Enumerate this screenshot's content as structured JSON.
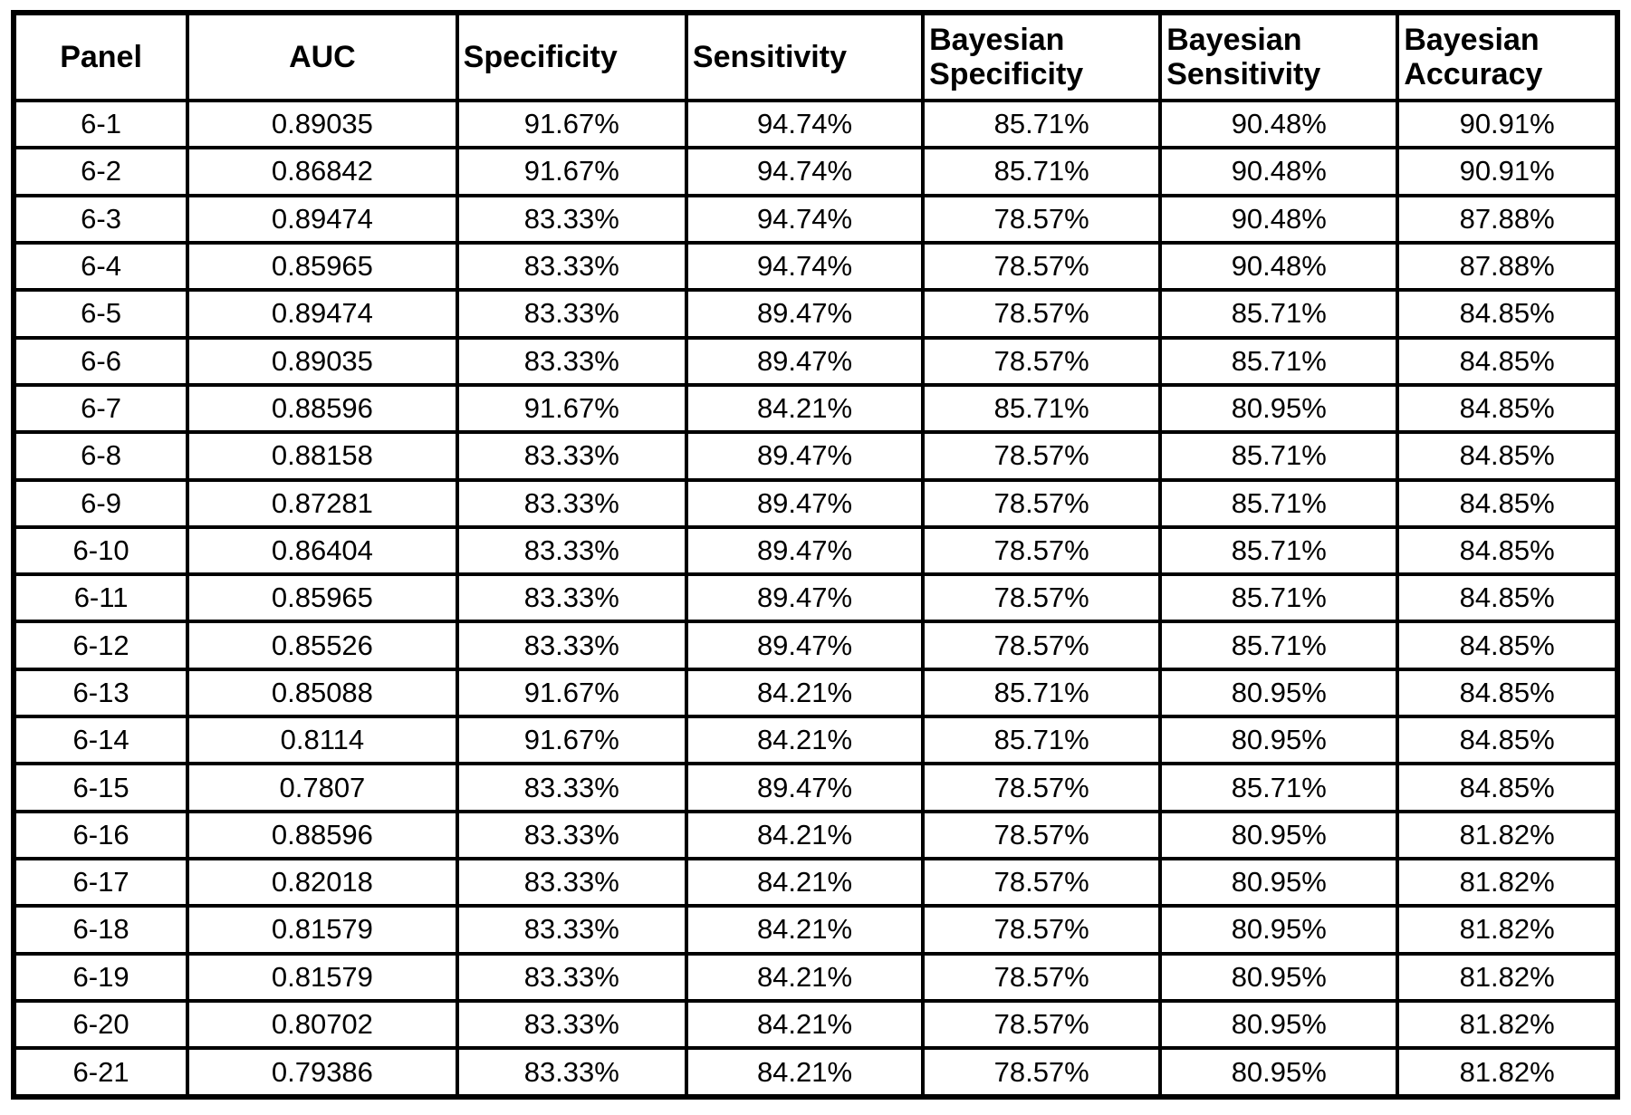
{
  "chart_data": {
    "type": "table",
    "title": "",
    "columns": [
      {
        "id": "panel",
        "label": "Panel",
        "align": "center"
      },
      {
        "id": "auc",
        "label": "AUC",
        "align": "center"
      },
      {
        "id": "specificity",
        "label": "Specificity",
        "align": "left"
      },
      {
        "id": "sensitivity",
        "label": "Sensitivity",
        "align": "left"
      },
      {
        "id": "bayesian-specificity",
        "label": "Bayesian Specificity",
        "align": "left",
        "lines": [
          "Bayesian",
          "Specificity"
        ]
      },
      {
        "id": "bayesian-sensitivity",
        "label": "Bayesian Sensitivity",
        "align": "left",
        "lines": [
          "Bayesian",
          "Sensitivity"
        ]
      },
      {
        "id": "bayesian-accuracy",
        "label": "Bayesian Accuracy",
        "align": "left",
        "lines": [
          "Bayesian",
          "Accuracy"
        ]
      }
    ],
    "rows": [
      [
        "6-1",
        "0.89035",
        "91.67%",
        "94.74%",
        "85.71%",
        "90.48%",
        "90.91%"
      ],
      [
        "6-2",
        "0.86842",
        "91.67%",
        "94.74%",
        "85.71%",
        "90.48%",
        "90.91%"
      ],
      [
        "6-3",
        "0.89474",
        "83.33%",
        "94.74%",
        "78.57%",
        "90.48%",
        "87.88%"
      ],
      [
        "6-4",
        "0.85965",
        "83.33%",
        "94.74%",
        "78.57%",
        "90.48%",
        "87.88%"
      ],
      [
        "6-5",
        "0.89474",
        "83.33%",
        "89.47%",
        "78.57%",
        "85.71%",
        "84.85%"
      ],
      [
        "6-6",
        "0.89035",
        "83.33%",
        "89.47%",
        "78.57%",
        "85.71%",
        "84.85%"
      ],
      [
        "6-7",
        "0.88596",
        "91.67%",
        "84.21%",
        "85.71%",
        "80.95%",
        "84.85%"
      ],
      [
        "6-8",
        "0.88158",
        "83.33%",
        "89.47%",
        "78.57%",
        "85.71%",
        "84.85%"
      ],
      [
        "6-9",
        "0.87281",
        "83.33%",
        "89.47%",
        "78.57%",
        "85.71%",
        "84.85%"
      ],
      [
        "6-10",
        "0.86404",
        "83.33%",
        "89.47%",
        "78.57%",
        "85.71%",
        "84.85%"
      ],
      [
        "6-11",
        "0.85965",
        "83.33%",
        "89.47%",
        "78.57%",
        "85.71%",
        "84.85%"
      ],
      [
        "6-12",
        "0.85526",
        "83.33%",
        "89.47%",
        "78.57%",
        "85.71%",
        "84.85%"
      ],
      [
        "6-13",
        "0.85088",
        "91.67%",
        "84.21%",
        "85.71%",
        "80.95%",
        "84.85%"
      ],
      [
        "6-14",
        "0.8114",
        "91.67%",
        "84.21%",
        "85.71%",
        "80.95%",
        "84.85%"
      ],
      [
        "6-15",
        "0.7807",
        "83.33%",
        "89.47%",
        "78.57%",
        "85.71%",
        "84.85%"
      ],
      [
        "6-16",
        "0.88596",
        "83.33%",
        "84.21%",
        "78.57%",
        "80.95%",
        "81.82%"
      ],
      [
        "6-17",
        "0.82018",
        "83.33%",
        "84.21%",
        "78.57%",
        "80.95%",
        "81.82%"
      ],
      [
        "6-18",
        "0.81579",
        "83.33%",
        "84.21%",
        "78.57%",
        "80.95%",
        "81.82%"
      ],
      [
        "6-19",
        "0.81579",
        "83.33%",
        "84.21%",
        "78.57%",
        "80.95%",
        "81.82%"
      ],
      [
        "6-20",
        "0.80702",
        "83.33%",
        "84.21%",
        "78.57%",
        "80.95%",
        "81.82%"
      ],
      [
        "6-21",
        "0.79386",
        "83.33%",
        "84.21%",
        "78.57%",
        "80.95%",
        "81.82%"
      ]
    ],
    "colors": {
      "border": "#000000",
      "text": "#000000",
      "background": "#ffffff"
    }
  }
}
